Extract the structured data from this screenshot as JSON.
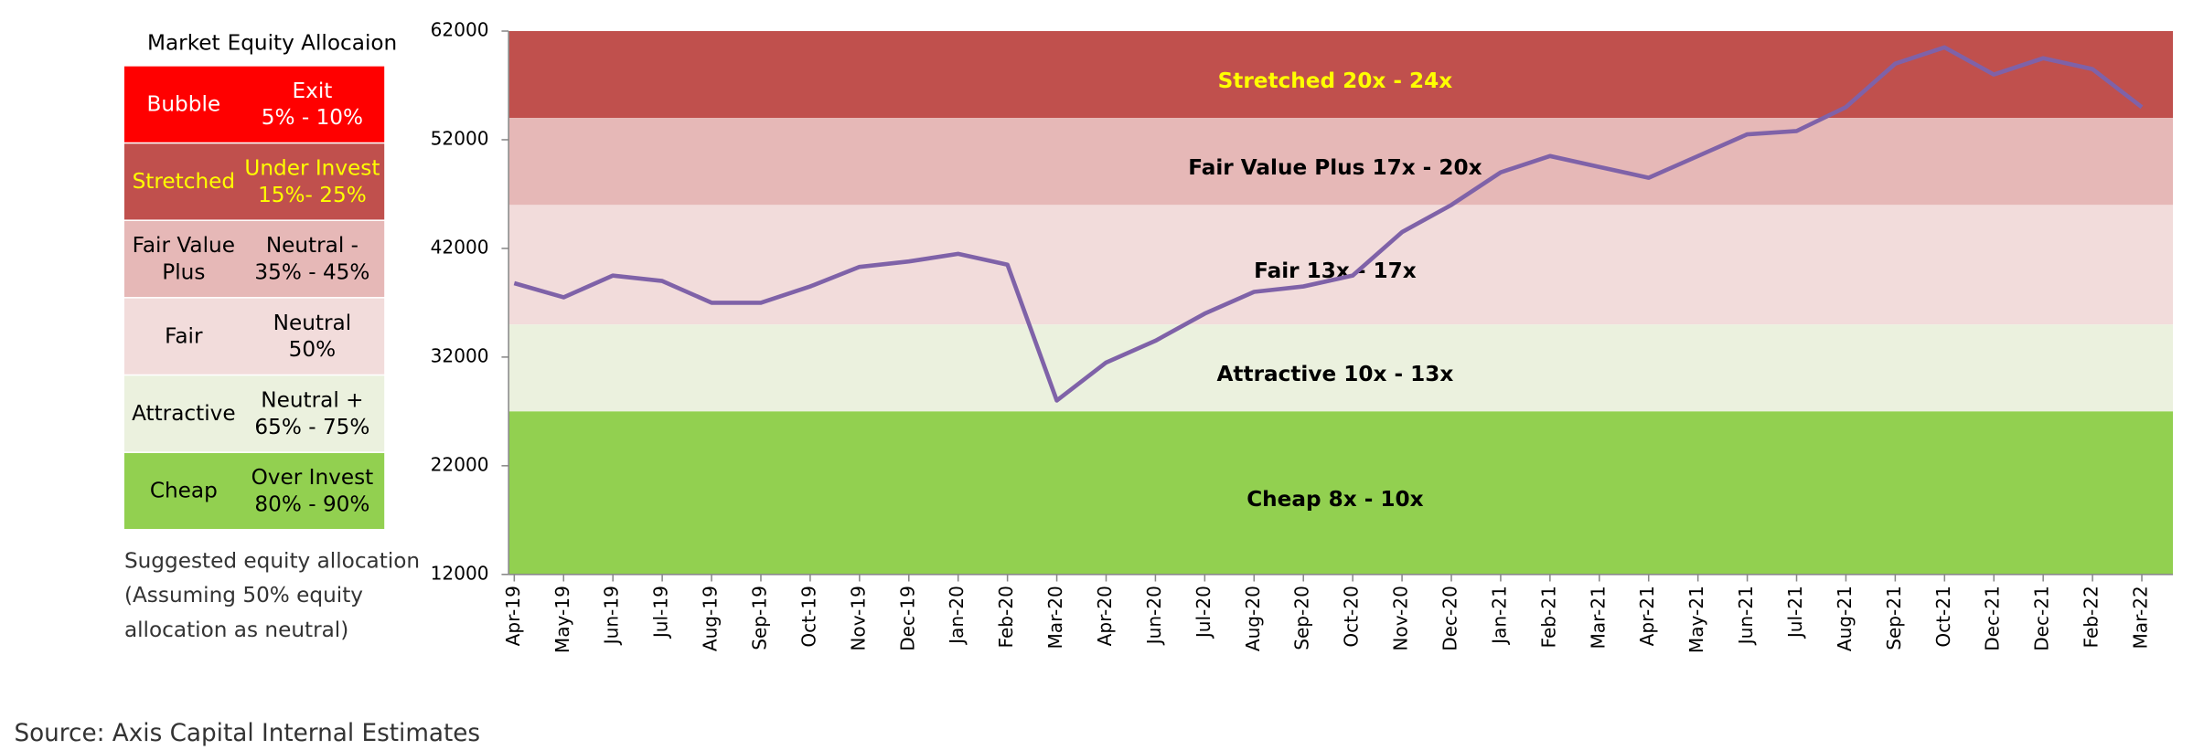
{
  "table": {
    "header": [
      "Market",
      "Equity Allocaion"
    ],
    "rows": [
      {
        "market": [
          "Bubble"
        ],
        "allocation": [
          "Exit",
          "5% - 10%"
        ],
        "color": "#ff0000",
        "text_color": "#ffffff"
      },
      {
        "market": [
          "Stretched"
        ],
        "allocation": [
          "Under Invest",
          "15%- 25%"
        ],
        "color": "#c0504d",
        "text_color": "#ffff00"
      },
      {
        "market": [
          "Fair Value",
          "Plus"
        ],
        "allocation": [
          "Neutral -",
          "35% - 45%"
        ],
        "color": "#e6b8b7",
        "text_color": "#000000"
      },
      {
        "market": [
          "Fair"
        ],
        "allocation": [
          "Neutral",
          "50%"
        ],
        "color": "#f2dcdb",
        "text_color": "#000000"
      },
      {
        "market": [
          "Attractive"
        ],
        "allocation": [
          "Neutral +",
          "65% - 75%"
        ],
        "color": "#ebf1de",
        "text_color": "#000000"
      },
      {
        "market": [
          "Cheap"
        ],
        "allocation": [
          "Over Invest",
          "80% - 90%"
        ],
        "color": "#92d050",
        "text_color": "#000000"
      }
    ],
    "note": [
      "Suggested equity allocation",
      "(Assuming 50% equity",
      "allocation as neutral)"
    ]
  },
  "chart_data": {
    "type": "line",
    "ylim": [
      12000,
      62000
    ],
    "yticks": [
      12000,
      22000,
      32000,
      42000,
      52000,
      62000
    ],
    "bands": [
      {
        "label": "Stretched 20x - 24x",
        "from": 54000,
        "to": 62000,
        "color": "#c0504d",
        "label_color": "#ffff00"
      },
      {
        "label": "Fair Value Plus 17x - 20x",
        "from": 46000,
        "to": 54000,
        "color": "#e6b8b7",
        "label_color": "#000000"
      },
      {
        "label": "Fair 13x - 17x",
        "from": 35000,
        "to": 46000,
        "color": "#f2dcdb",
        "label_color": "#000000"
      },
      {
        "label": "Attractive  10x - 13x",
        "from": 27000,
        "to": 35000,
        "color": "#ebf1de",
        "label_color": "#000000"
      },
      {
        "label": "Cheap 8x - 10x",
        "from": 12000,
        "to": 27000,
        "color": "#92d050",
        "label_color": "#000000"
      }
    ],
    "categories": [
      "Apr-19",
      "May-19",
      "Jun-19",
      "Jul-19",
      "Aug-19",
      "Sep-19",
      "Oct-19",
      "Nov-19",
      "Dec-19",
      "Jan-20",
      "Feb-20",
      "Mar-20",
      "Apr-20",
      "Jun-20",
      "Jul-20",
      "Aug-20",
      "Sep-20",
      "Oct-20",
      "Nov-20",
      "Dec-20",
      "Jan-21",
      "Feb-21",
      "Mar-21",
      "Apr-21",
      "May-21",
      "Jun-21",
      "Jul-21",
      "Aug-21",
      "Sep-21",
      "Oct-21",
      "Dec-21",
      "Dec-21",
      "Feb-22",
      "Mar-22"
    ],
    "series": [
      {
        "color": "#7f62a8",
        "values": [
          38800,
          37500,
          39500,
          39000,
          37000,
          37000,
          38500,
          40300,
          40800,
          41500,
          40500,
          28000,
          31500,
          33500,
          36000,
          38000,
          38500,
          39500,
          43500,
          46000,
          49000,
          50500,
          49500,
          48500,
          50500,
          52500,
          52800,
          55000,
          59000,
          60500,
          58000,
          59500,
          58500,
          55000
        ]
      }
    ]
  },
  "source": "Source: Axis Capital Internal Estimates"
}
